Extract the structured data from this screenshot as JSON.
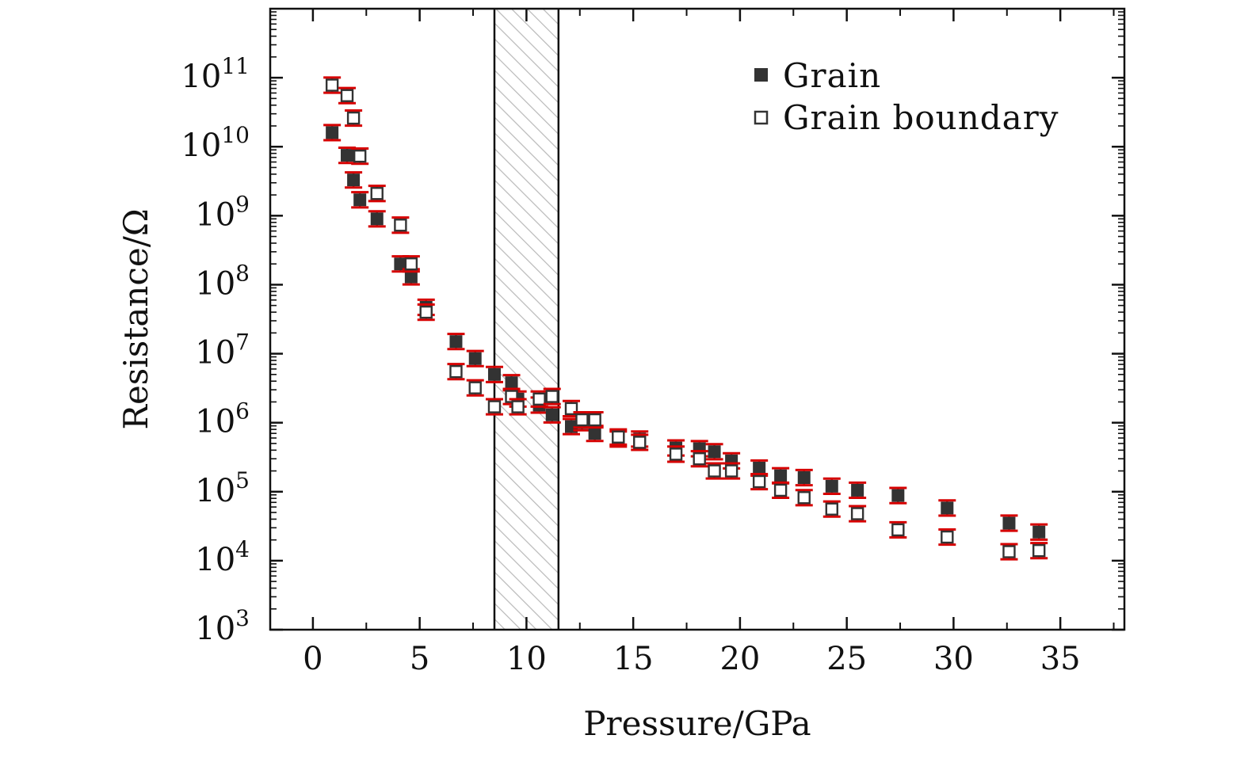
{
  "chart_data": {
    "type": "scatter",
    "title": "",
    "xlabel": "Pressure/GPa",
    "ylabel": "Resistance/Ω",
    "xlim": [
      -2,
      38
    ],
    "ylim_log10": [
      3,
      12
    ],
    "y_scale": "log",
    "x_ticks": [
      0,
      5,
      10,
      15,
      20,
      25,
      30,
      35
    ],
    "x_tick_labels": [
      "0",
      "5",
      "10",
      "15",
      "20",
      "25",
      "30",
      "35"
    ],
    "y_ticks": [
      {
        "base": "10",
        "exp": "3",
        "value_log10": 3
      },
      {
        "base": "10",
        "exp": "4",
        "value_log10": 4
      },
      {
        "base": "10",
        "exp": "5",
        "value_log10": 5
      },
      {
        "base": "10",
        "exp": "6",
        "value_log10": 6
      },
      {
        "base": "10",
        "exp": "7",
        "value_log10": 7
      },
      {
        "base": "10",
        "exp": "8",
        "value_log10": 8
      },
      {
        "base": "10",
        "exp": "9",
        "value_log10": 9
      },
      {
        "base": "10",
        "exp": "10",
        "value_log10": 10
      },
      {
        "base": "10",
        "exp": "11",
        "value_log10": 11
      }
    ],
    "shaded_region": {
      "x": [
        8.5,
        11.5
      ],
      "pattern": "hatched"
    },
    "legend": {
      "placement": "top-right"
    },
    "error_bar_color": "#d60000",
    "marker_color": "#333333",
    "series": [
      {
        "name": "Grain",
        "marker": "filled-square",
        "points": [
          {
            "x": 0.9,
            "y": 16000000000.0
          },
          {
            "x": 1.6,
            "y": 7500000000.0
          },
          {
            "x": 1.9,
            "y": 3300000000.0
          },
          {
            "x": 2.2,
            "y": 1700000000.0
          },
          {
            "x": 3.0,
            "y": 900000000.0
          },
          {
            "x": 4.1,
            "y": 200000000.0
          },
          {
            "x": 4.6,
            "y": 130000000.0
          },
          {
            "x": 5.3,
            "y": 47000000.0
          },
          {
            "x": 6.7,
            "y": 15000000.0
          },
          {
            "x": 7.6,
            "y": 8500000.0
          },
          {
            "x": 8.5,
            "y": 5000000.0
          },
          {
            "x": 9.3,
            "y": 3800000.0
          },
          {
            "x": 9.6,
            "y": 2200000.0
          },
          {
            "x": 10.6,
            "y": 1800000.0
          },
          {
            "x": 11.2,
            "y": 1300000.0
          },
          {
            "x": 12.1,
            "y": 880000.0
          },
          {
            "x": 12.6,
            "y": 1000000.0
          },
          {
            "x": 13.2,
            "y": 700000.0
          },
          {
            "x": 14.3,
            "y": 580000.0
          },
          {
            "x": 15.3,
            "y": 580000.0
          },
          {
            "x": 17.0,
            "y": 430000.0
          },
          {
            "x": 18.1,
            "y": 420000.0
          },
          {
            "x": 18.8,
            "y": 380000.0
          },
          {
            "x": 19.6,
            "y": 280000.0
          },
          {
            "x": 20.9,
            "y": 220000.0
          },
          {
            "x": 21.9,
            "y": 170000.0
          },
          {
            "x": 23.0,
            "y": 160000.0
          },
          {
            "x": 24.3,
            "y": 120000.0
          },
          {
            "x": 25.5,
            "y": 105000.0
          },
          {
            "x": 27.4,
            "y": 88000.0
          },
          {
            "x": 29.7,
            "y": 58000.0
          },
          {
            "x": 32.6,
            "y": 35000.0
          },
          {
            "x": 34.0,
            "y": 26000.0
          }
        ]
      },
      {
        "name": "Grain boundary",
        "marker": "open-square",
        "points": [
          {
            "x": 0.9,
            "y": 78000000000.0
          },
          {
            "x": 1.6,
            "y": 55000000000.0
          },
          {
            "x": 1.9,
            "y": 26000000000.0
          },
          {
            "x": 2.2,
            "y": 7300000000.0
          },
          {
            "x": 3.0,
            "y": 2100000000.0
          },
          {
            "x": 4.1,
            "y": 730000000.0
          },
          {
            "x": 4.6,
            "y": 200000000.0
          },
          {
            "x": 5.3,
            "y": 40000000.0
          },
          {
            "x": 6.7,
            "y": 5500000.0
          },
          {
            "x": 7.6,
            "y": 3200000.0
          },
          {
            "x": 8.5,
            "y": 1700000.0
          },
          {
            "x": 9.3,
            "y": 2400000.0
          },
          {
            "x": 9.6,
            "y": 1700000.0
          },
          {
            "x": 10.6,
            "y": 2200000.0
          },
          {
            "x": 11.2,
            "y": 2400000.0
          },
          {
            "x": 12.1,
            "y": 1600000.0
          },
          {
            "x": 12.6,
            "y": 1100000.0
          },
          {
            "x": 13.2,
            "y": 1100000.0
          },
          {
            "x": 14.3,
            "y": 620000.0
          },
          {
            "x": 15.3,
            "y": 520000.0
          },
          {
            "x": 17.0,
            "y": 350000.0
          },
          {
            "x": 18.1,
            "y": 300000.0
          },
          {
            "x": 18.8,
            "y": 200000.0
          },
          {
            "x": 19.6,
            "y": 200000.0
          },
          {
            "x": 20.9,
            "y": 140000.0
          },
          {
            "x": 21.9,
            "y": 105000.0
          },
          {
            "x": 23.0,
            "y": 82000.0
          },
          {
            "x": 24.3,
            "y": 56000.0
          },
          {
            "x": 25.5,
            "y": 48000.0
          },
          {
            "x": 27.4,
            "y": 28000.0
          },
          {
            "x": 29.7,
            "y": 22000.0
          },
          {
            "x": 32.6,
            "y": 13500.0
          },
          {
            "x": 34.0,
            "y": 14000.0
          }
        ]
      }
    ]
  }
}
